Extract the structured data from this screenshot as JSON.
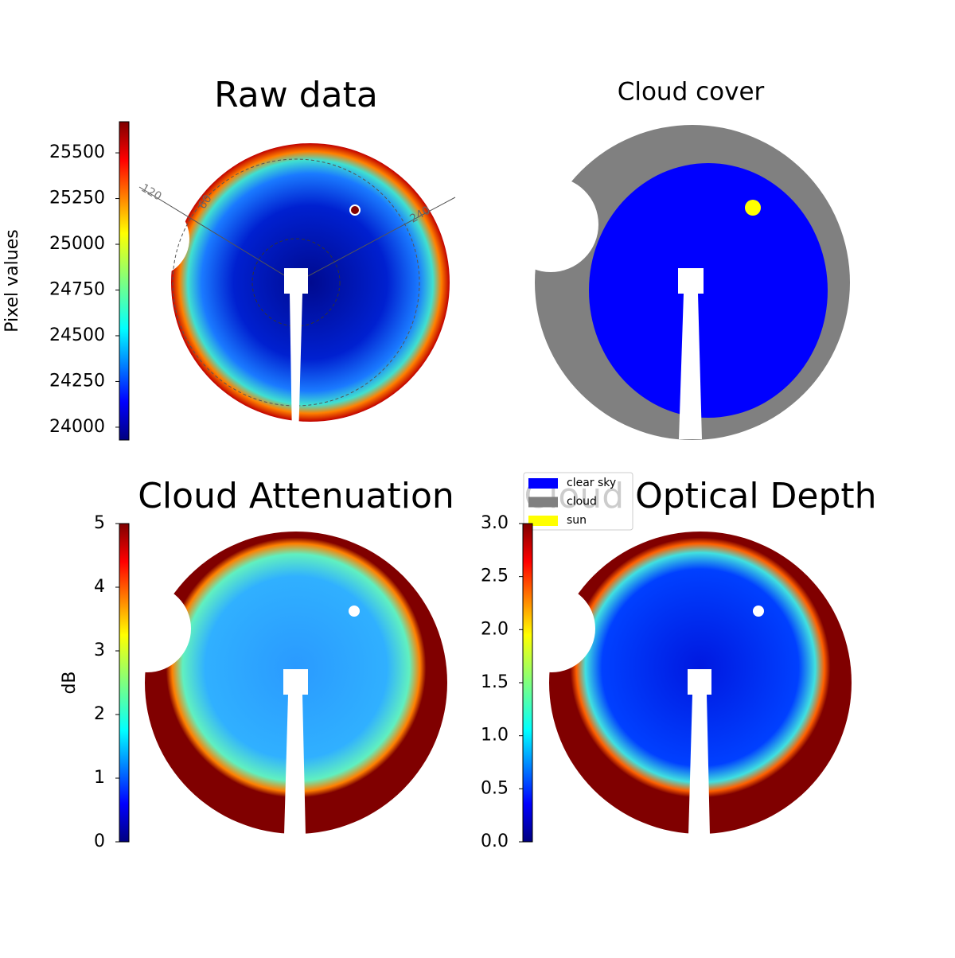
{
  "chart_data": [
    {
      "type": "heatmap",
      "title": "Raw data",
      "colorbar_label": "Pixel values",
      "clim": [
        23930,
        25670
      ],
      "cticks": [
        24000,
        24250,
        24500,
        24750,
        25000,
        25250,
        25500
      ],
      "annotations": [
        "120",
        "60",
        "240"
      ]
    },
    {
      "type": "categorical-map",
      "title": "Cloud cover",
      "series": [
        {
          "name": "clear sky",
          "color": "#0000ff"
        },
        {
          "name": "cloud",
          "color": "#808080"
        },
        {
          "name": "sun",
          "color": "#ffff00"
        }
      ]
    },
    {
      "type": "heatmap",
      "title": "Cloud Attenuation",
      "colorbar_label": "dB",
      "clim": [
        0,
        5
      ],
      "cticks": [
        0,
        1,
        2,
        3,
        4,
        5
      ]
    },
    {
      "type": "heatmap",
      "title": "Cloud Optical Depth",
      "clim": [
        0,
        3
      ],
      "cticks": [
        {
          "value": 0,
          "label": "0.0"
        },
        0.5,
        {
          "value": 1,
          "label": "1.0"
        },
        1.5,
        {
          "value": 2,
          "label": "2.0"
        },
        2.5,
        {
          "value": 3,
          "label": "3.0"
        }
      ]
    }
  ]
}
